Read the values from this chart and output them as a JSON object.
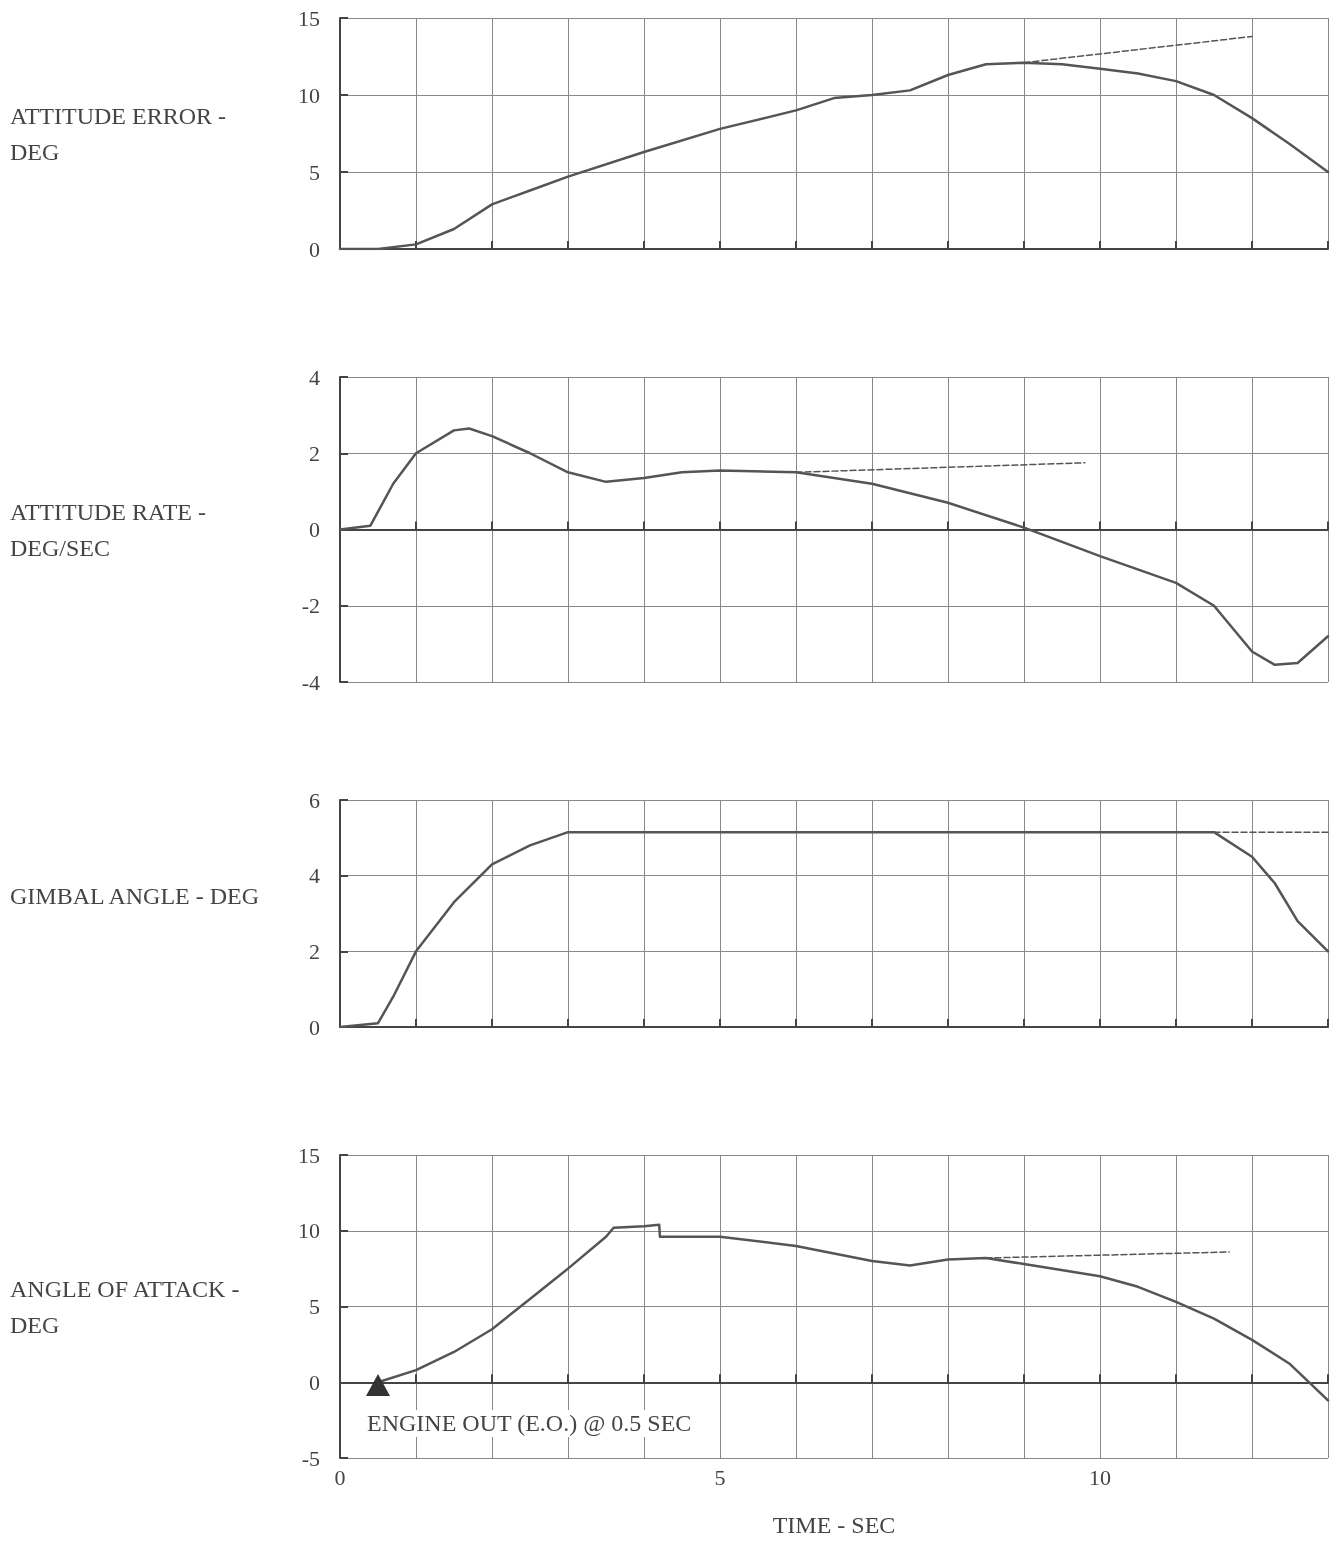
{
  "chart_data": [
    {
      "type": "line",
      "ylabel": "ATTITUDE ERROR - DEG",
      "xlim": [
        0,
        13
      ],
      "xticks": [
        0,
        {
          "value": 1,
          "label": null
        },
        {
          "value": 2,
          "label": null
        },
        {
          "value": 3,
          "label": null
        },
        {
          "value": 4,
          "label": null
        },
        5,
        {
          "value": 6,
          "label": null
        },
        {
          "value": 7,
          "label": null
        },
        {
          "value": 8,
          "label": null
        },
        {
          "value": 9,
          "label": null
        },
        10,
        {
          "value": 11,
          "label": null
        },
        {
          "value": 12,
          "label": null
        },
        {
          "value": 13,
          "label": null
        }
      ],
      "ylim": [
        0,
        15
      ],
      "yticks": [
        0,
        5,
        10,
        15
      ],
      "grid": true,
      "tick_labels": "y",
      "marker": "none",
      "series": [
        {
          "color": "#555555",
          "line_style": "solid",
          "x": [
            0,
            0.5,
            1,
            1.5,
            2,
            2.5,
            3,
            4,
            5,
            6,
            6.5,
            7,
            7.5,
            8,
            8.5,
            9,
            9.5,
            10,
            10.5,
            11,
            11.5,
            12,
            12.5,
            13
          ],
          "values": [
            0,
            0,
            0.3,
            1.3,
            2.9,
            3.8,
            4.7,
            6.3,
            7.8,
            9.0,
            9.8,
            10.0,
            10.3,
            11.3,
            12.0,
            12.1,
            12.0,
            11.7,
            11.4,
            10.9,
            10.0,
            8.5,
            6.8,
            5.0
          ]
        },
        {
          "color": "#555555",
          "line_style": "dashed",
          "x": [
            9,
            12
          ],
          "values": [
            12.1,
            13.8
          ]
        }
      ]
    },
    {
      "type": "line",
      "ylabel": "ATTITUDE RATE - DEG/SEC",
      "xlim": [
        0,
        13
      ],
      "xticks": [
        0,
        {
          "value": 1,
          "label": null
        },
        {
          "value": 2,
          "label": null
        },
        {
          "value": 3,
          "label": null
        },
        {
          "value": 4,
          "label": null
        },
        5,
        {
          "value": 6,
          "label": null
        },
        {
          "value": 7,
          "label": null
        },
        {
          "value": 8,
          "label": null
        },
        {
          "value": 9,
          "label": null
        },
        10,
        {
          "value": 11,
          "label": null
        },
        {
          "value": 12,
          "label": null
        },
        {
          "value": 13,
          "label": null
        }
      ],
      "ylim": [
        -4,
        4
      ],
      "yticks": [
        -4,
        -2,
        0,
        2,
        4
      ],
      "grid": true,
      "tick_labels": "y",
      "marker": "none",
      "series": [
        {
          "color": "#555555",
          "line_style": "solid",
          "x": [
            0,
            0.4,
            0.7,
            1,
            1.5,
            1.7,
            2,
            2.5,
            3,
            3.5,
            4,
            4.5,
            5,
            6,
            7,
            8,
            9,
            10,
            11,
            11.5,
            12,
            12.3,
            12.6,
            13
          ],
          "values": [
            0,
            0.1,
            1.2,
            2.0,
            2.6,
            2.65,
            2.45,
            2.0,
            1.5,
            1.25,
            1.35,
            1.5,
            1.55,
            1.5,
            1.2,
            0.7,
            0.05,
            -0.7,
            -1.4,
            -2.0,
            -3.2,
            -3.55,
            -3.5,
            -2.8
          ]
        },
        {
          "color": "#555555",
          "line_style": "dashed",
          "x": [
            6,
            9.8
          ],
          "values": [
            1.5,
            1.75
          ]
        }
      ]
    },
    {
      "type": "line",
      "ylabel": "GIMBAL ANGLE - DEG",
      "xlim": [
        0,
        13
      ],
      "xticks": [
        0,
        {
          "value": 1,
          "label": null
        },
        {
          "value": 2,
          "label": null
        },
        {
          "value": 3,
          "label": null
        },
        {
          "value": 4,
          "label": null
        },
        5,
        {
          "value": 6,
          "label": null
        },
        {
          "value": 7,
          "label": null
        },
        {
          "value": 8,
          "label": null
        },
        {
          "value": 9,
          "label": null
        },
        10,
        {
          "value": 11,
          "label": null
        },
        {
          "value": 12,
          "label": null
        },
        {
          "value": 13,
          "label": null
        }
      ],
      "ylim": [
        0,
        6
      ],
      "yticks": [
        0,
        2,
        4,
        6
      ],
      "grid": true,
      "tick_labels": "y",
      "marker": "none",
      "series": [
        {
          "color": "#555555",
          "line_style": "solid",
          "x": [
            0,
            0.5,
            0.7,
            1,
            1.5,
            2,
            2.5,
            3,
            11.5,
            12,
            12.3,
            12.6,
            13
          ],
          "values": [
            0,
            0.1,
            0.8,
            2.0,
            3.3,
            4.3,
            4.8,
            5.15,
            5.15,
            4.5,
            3.8,
            2.8,
            2.0
          ]
        },
        {
          "color": "#555555",
          "line_style": "dashed",
          "x": [
            11.5,
            13
          ],
          "values": [
            5.15,
            5.15
          ]
        }
      ]
    },
    {
      "type": "line",
      "ylabel": "ANGLE OF ATTACK - DEG",
      "xlabel": "TIME - SEC",
      "xlim": [
        0,
        13
      ],
      "xticks": [
        0,
        {
          "value": 1,
          "label": null
        },
        {
          "value": 2,
          "label": null
        },
        {
          "value": 3,
          "label": null
        },
        {
          "value": 4,
          "label": null
        },
        5,
        {
          "value": 6,
          "label": null
        },
        {
          "value": 7,
          "label": null
        },
        {
          "value": 8,
          "label": null
        },
        {
          "value": 9,
          "label": null
        },
        10,
        {
          "value": 11,
          "label": null
        },
        {
          "value": 12,
          "label": null
        },
        {
          "value": 13,
          "label": null
        }
      ],
      "ylim": [
        -5,
        15
      ],
      "yticks": [
        -5,
        0,
        5,
        10,
        15
      ],
      "grid": true,
      "marker": "none",
      "annotations": [
        {
          "text": "ENGINE OUT (E.O.) @ 0.5 SEC",
          "x": 0.5,
          "y": 0
        }
      ],
      "series": [
        {
          "color": "#555555",
          "line_style": "solid",
          "x": [
            0.5,
            1,
            1.5,
            2,
            2.5,
            3,
            3.5,
            3.6,
            4,
            4.2,
            4.21,
            5,
            6,
            7,
            7.5,
            8,
            8.5,
            9,
            10,
            10.5,
            11,
            11.5,
            12,
            12.5,
            13
          ],
          "values": [
            0,
            0.8,
            2,
            3.5,
            5.5,
            7.5,
            9.6,
            10.2,
            10.3,
            10.4,
            9.6,
            9.6,
            9.0,
            8.0,
            7.7,
            8.1,
            8.2,
            7.8,
            7.0,
            6.3,
            5.3,
            4.2,
            2.8,
            1.2,
            -1.2
          ]
        },
        {
          "color": "#555555",
          "line_style": "dashed",
          "x": [
            8.5,
            11.7
          ],
          "values": [
            8.2,
            8.6
          ]
        }
      ]
    }
  ]
}
